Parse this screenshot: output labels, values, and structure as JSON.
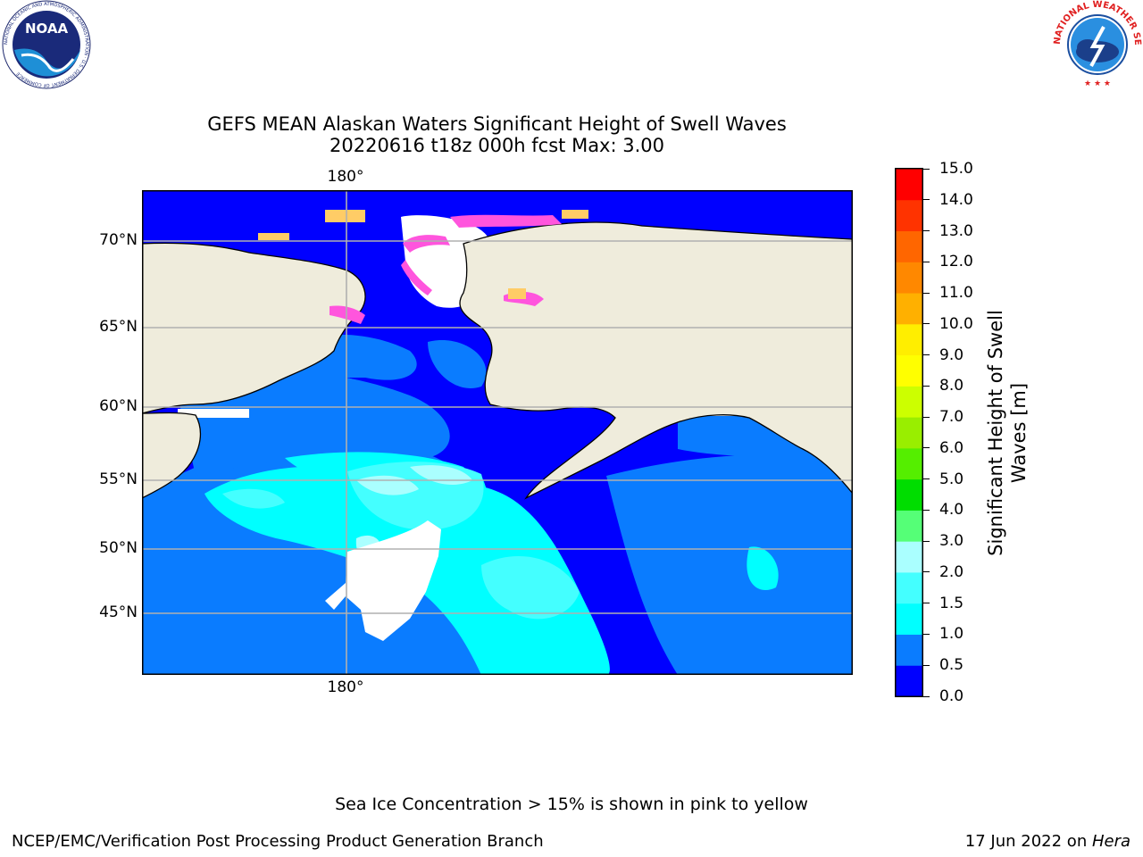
{
  "title_line1": "GEFS MEAN Alaskan Waters Significant Height of Swell Waves",
  "title_line2": "20220616 t18z 000h fcst   Max: 3.00",
  "map": {
    "lat_labels": [
      "70°N",
      "65°N",
      "60°N",
      "55°N",
      "50°N",
      "45°N"
    ],
    "lon_label_top": "180°",
    "lon_label_bottom": "180°",
    "colors": {
      "land": "#efecdc",
      "coast": "#000000",
      "grid": "#b0b0b0",
      "ice": "#ff44dd",
      "no_data": "#ffffff"
    }
  },
  "colorbar": {
    "label": "Significant Height of Swell Waves [m]",
    "ticks": [
      "15.0",
      "14.0",
      "13.0",
      "12.0",
      "11.0",
      "10.0",
      "9.0",
      "8.0",
      "7.0",
      "6.0",
      "5.0",
      "4.0",
      "3.0",
      "2.0",
      "1.5",
      "1.0",
      "0.5",
      "0.0"
    ],
    "colors": [
      "#0000ff",
      "#0a7cff",
      "#00ffff",
      "#44ffff",
      "#aaffff",
      "#55ff77",
      "#00dd00",
      "#55ee00",
      "#99ee00",
      "#ccff00",
      "#ffff00",
      "#ffee00",
      "#ffb000",
      "#ff8800",
      "#ff6600",
      "#ff3300",
      "#ff0000"
    ]
  },
  "footer_note": "Sea Ice Concentration > 15% is shown in pink to yellow",
  "footer_left": "NCEP/EMC/Verification Post Processing Product Generation Branch",
  "footer_right_date": "17 Jun 2022 on ",
  "footer_right_host": "Hera",
  "logos": {
    "noaa_text": "NOAA",
    "noaa_ring": "NATIONAL OCEANIC AND ATMOSPHERIC ADMINISTRATION · U.S. DEPARTMENT OF COMMERCE",
    "nws_ring": "NATIONAL WEATHER SERVICE"
  }
}
